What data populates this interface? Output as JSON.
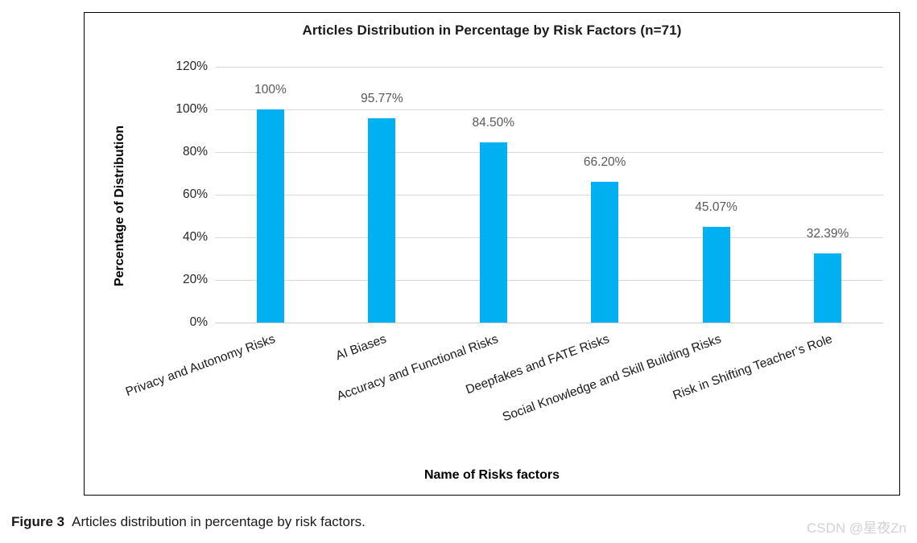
{
  "figure": {
    "caption_label": "Figure 3",
    "caption_text": "Articles distribution in percentage by risk factors.",
    "watermark": "CSDN @星夜Zn"
  },
  "chart_data": {
    "type": "bar",
    "title": "Articles Distribution in Percentage by Risk Factors (n=71)",
    "xlabel": "Name of Risks factors",
    "ylabel": "Percentage of Distribution",
    "categories": [
      "Privacy and Autonomy Risks",
      "AI Biases",
      "Accuracy and Functional Risks",
      "Deepfakes and FATE Risks",
      "Social Knowledge and Skill Building Risks",
      "Risk in Shifting Teacher’s Role"
    ],
    "values": [
      100,
      95.77,
      84.5,
      66.2,
      45.07,
      32.39
    ],
    "data_labels": [
      "100%",
      "95.77%",
      "84.50%",
      "66.20%",
      "45.07%",
      "32.39%"
    ],
    "ylim": [
      0,
      120
    ],
    "ytick_step": 20,
    "ytick_labels": [
      "0%",
      "20%",
      "40%",
      "60%",
      "80%",
      "100%",
      "120%"
    ],
    "grid": true,
    "legend_position": "none",
    "bar_color": "#00B0F0",
    "gridline_color": "#d9d9d9",
    "value_label_color": "#595959"
  }
}
